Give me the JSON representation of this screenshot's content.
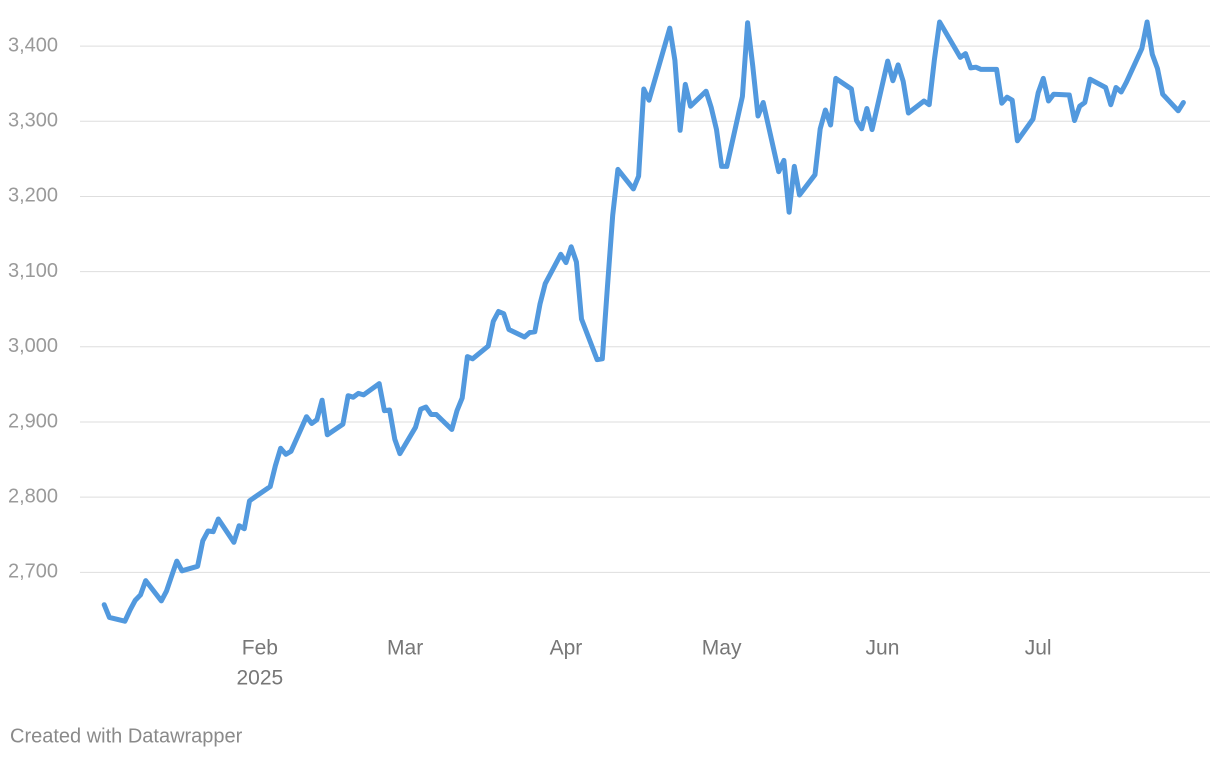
{
  "chart_data": {
    "type": "line",
    "x": [
      "2025-01-02",
      "2025-01-03",
      "2025-01-06",
      "2025-01-07",
      "2025-01-08",
      "2025-01-09",
      "2025-01-10",
      "2025-01-13",
      "2025-01-14",
      "2025-01-15",
      "2025-01-16",
      "2025-01-17",
      "2025-01-20",
      "2025-01-21",
      "2025-01-22",
      "2025-01-23",
      "2025-01-24",
      "2025-01-27",
      "2025-01-28",
      "2025-01-29",
      "2025-01-30",
      "2025-01-31",
      "2025-02-03",
      "2025-02-04",
      "2025-02-05",
      "2025-02-06",
      "2025-02-07",
      "2025-02-10",
      "2025-02-11",
      "2025-02-12",
      "2025-02-13",
      "2025-02-14",
      "2025-02-17",
      "2025-02-18",
      "2025-02-19",
      "2025-02-20",
      "2025-02-21",
      "2025-02-24",
      "2025-02-25",
      "2025-02-26",
      "2025-02-27",
      "2025-02-28",
      "2025-03-03",
      "2025-03-04",
      "2025-03-05",
      "2025-03-06",
      "2025-03-07",
      "2025-03-10",
      "2025-03-11",
      "2025-03-12",
      "2025-03-13",
      "2025-03-14",
      "2025-03-17",
      "2025-03-18",
      "2025-03-19",
      "2025-03-20",
      "2025-03-21",
      "2025-03-24",
      "2025-03-25",
      "2025-03-26",
      "2025-03-27",
      "2025-03-28",
      "2025-03-31",
      "2025-04-01",
      "2025-04-02",
      "2025-04-03",
      "2025-04-04",
      "2025-04-07",
      "2025-04-08",
      "2025-04-09",
      "2025-04-10",
      "2025-04-11",
      "2025-04-14",
      "2025-04-15",
      "2025-04-16",
      "2025-04-17",
      "2025-04-21",
      "2025-04-22",
      "2025-04-23",
      "2025-04-24",
      "2025-04-25",
      "2025-04-28",
      "2025-04-29",
      "2025-04-30",
      "2025-05-01",
      "2025-05-02",
      "2025-05-05",
      "2025-05-06",
      "2025-05-07",
      "2025-05-08",
      "2025-05-09",
      "2025-05-12",
      "2025-05-13",
      "2025-05-14",
      "2025-05-15",
      "2025-05-16",
      "2025-05-19",
      "2025-05-20",
      "2025-05-21",
      "2025-05-22",
      "2025-05-23",
      "2025-05-26",
      "2025-05-27",
      "2025-05-28",
      "2025-05-29",
      "2025-05-30",
      "2025-06-02",
      "2025-06-03",
      "2025-06-04",
      "2025-06-05",
      "2025-06-06",
      "2025-06-09",
      "2025-06-10",
      "2025-06-11",
      "2025-06-12",
      "2025-06-16",
      "2025-06-17",
      "2025-06-18",
      "2025-06-19",
      "2025-06-20",
      "2025-06-23",
      "2025-06-24",
      "2025-06-25",
      "2025-06-26",
      "2025-06-27",
      "2025-06-30",
      "2025-07-01",
      "2025-07-02",
      "2025-07-03",
      "2025-07-04",
      "2025-07-07",
      "2025-07-08",
      "2025-07-09",
      "2025-07-10",
      "2025-07-11",
      "2025-07-14",
      "2025-07-15",
      "2025-07-16",
      "2025-07-17",
      "2025-07-18",
      "2025-07-21",
      "2025-07-22",
      "2025-07-23",
      "2025-07-24",
      "2025-07-25",
      "2025-07-28",
      "2025-07-29"
    ],
    "values": [
      2657,
      2640,
      2635,
      2650,
      2663,
      2670,
      2689,
      2662,
      2675,
      2695,
      2715,
      2702,
      2708,
      2742,
      2755,
      2754,
      2771,
      2740,
      2762,
      2758,
      2795,
      2800,
      2814,
      2842,
      2865,
      2857,
      2861,
      2907,
      2898,
      2903,
      2929,
      2883,
      2897,
      2935,
      2933,
      2938,
      2936,
      2951,
      2915,
      2916,
      2877,
      2858,
      2893,
      2917,
      2920,
      2910,
      2910,
      2890,
      2915,
      2932,
      2987,
      2984,
      3001,
      3034,
      3047,
      3044,
      3023,
      3013,
      3019,
      3020,
      3057,
      3084,
      3123,
      3112,
      3133,
      3113,
      3037,
      2983,
      2984,
      3081,
      3175,
      3236,
      3210,
      3227,
      3343,
      3328,
      3424,
      3381,
      3288,
      3349,
      3320,
      3340,
      3318,
      3289,
      3240,
      3240,
      3333,
      3431,
      3373,
      3307,
      3325,
      3233,
      3248,
      3179,
      3240,
      3202,
      3229,
      3290,
      3315,
      3295,
      3357,
      3343,
      3301,
      3290,
      3317,
      3289,
      3380,
      3354,
      3375,
      3353,
      3311,
      3327,
      3322,
      3382,
      3432,
      3385,
      3390,
      3371,
      3372,
      3369,
      3369,
      3324,
      3332,
      3328,
      3274,
      3303,
      3338,
      3357,
      3327,
      3336,
      3335,
      3301,
      3320,
      3325,
      3356,
      3345,
      3322,
      3345,
      3339,
      3352,
      3397,
      3432,
      3389,
      3370,
      3336,
      3314,
      3325
    ],
    "color": "#5299de",
    "xlim": [
      "2025-01-01",
      "2025-08-01"
    ],
    "xticks": [
      {
        "value": "2025-02",
        "label": "Feb",
        "year": "2025"
      },
      {
        "value": "2025-03",
        "label": "Mar"
      },
      {
        "value": "2025-04",
        "label": "Apr"
      },
      {
        "value": "2025-05",
        "label": "May"
      },
      {
        "value": "2025-06",
        "label": "Jun"
      },
      {
        "value": "2025-07",
        "label": "Jul"
      }
    ],
    "ylim": [
      2610,
      3460
    ],
    "yticks": [
      {
        "value": 2700,
        "label": "2,700"
      },
      {
        "value": 2800,
        "label": "2,800"
      },
      {
        "value": 2900,
        "label": "2,900"
      },
      {
        "value": 3000,
        "label": "3,000"
      },
      {
        "value": 3100,
        "label": "3,100"
      },
      {
        "value": 3200,
        "label": "3,200"
      },
      {
        "value": 3300,
        "label": "3,300"
      },
      {
        "value": 3400,
        "label": "3,400"
      }
    ],
    "grid": true,
    "footer": "Created with Datawrapper"
  }
}
